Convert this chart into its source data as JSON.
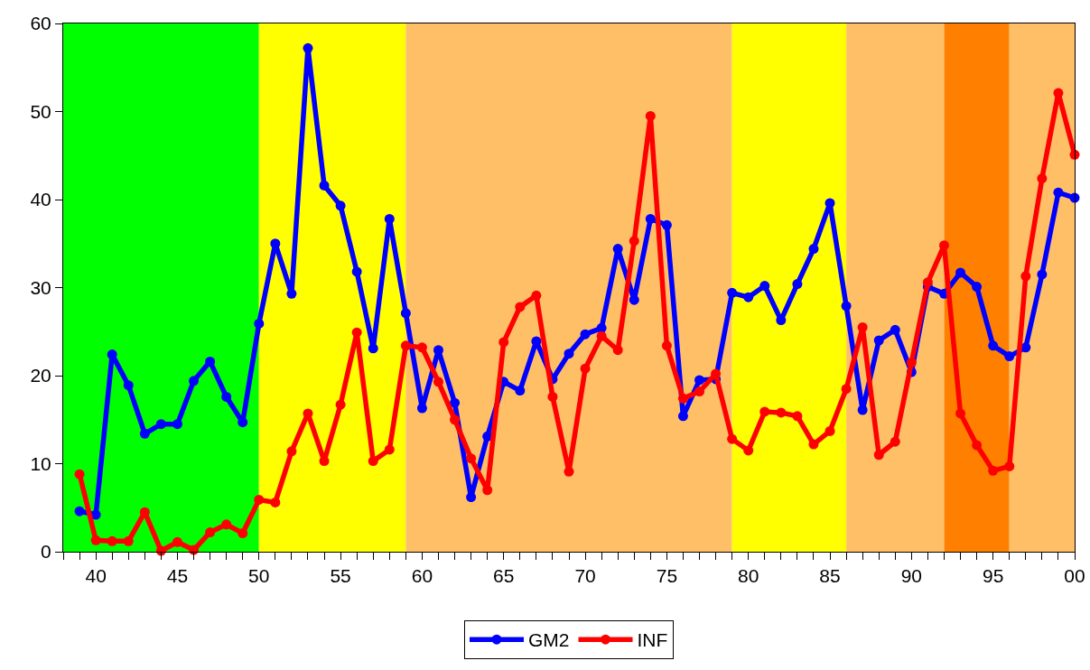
{
  "chart_data": {
    "type": "line",
    "x": [
      1939,
      1940,
      1941,
      1942,
      1943,
      1944,
      1945,
      1946,
      1947,
      1948,
      1949,
      1950,
      1951,
      1952,
      1953,
      1954,
      1955,
      1956,
      1957,
      1958,
      1959,
      1960,
      1961,
      1962,
      1963,
      1964,
      1965,
      1966,
      1967,
      1968,
      1969,
      1970,
      1971,
      1972,
      1973,
      1974,
      1975,
      1976,
      1977,
      1978,
      1979,
      1980,
      1981,
      1982,
      1983,
      1984,
      1985,
      1986,
      1987,
      1988,
      1989,
      1990,
      1991,
      1992,
      1993,
      1994,
      1995,
      1996,
      1997,
      1998,
      1999,
      2000
    ],
    "series": [
      {
        "name": "GM2",
        "color": "#0000ff",
        "values": [
          4.6,
          4.2,
          22.4,
          18.9,
          13.4,
          14.5,
          14.5,
          19.4,
          21.6,
          17.6,
          14.7,
          25.9,
          35.0,
          29.3,
          57.2,
          41.6,
          39.3,
          31.8,
          23.1,
          37.8,
          27.1,
          16.3,
          22.9,
          16.9,
          6.2,
          13.1,
          19.3,
          18.3,
          23.9,
          19.6,
          22.5,
          24.7,
          25.4,
          34.4,
          28.6,
          37.8,
          37.1,
          15.4,
          19.5,
          19.6,
          29.4,
          28.9,
          30.2,
          26.3,
          30.4,
          34.4,
          39.6,
          27.9,
          16.1,
          24.0,
          25.2,
          20.4,
          30.1,
          29.3,
          31.7,
          30.1,
          23.4,
          22.2,
          23.2,
          31.5,
          40.8,
          40.2
        ]
      },
      {
        "name": "INF",
        "color": "#ff0000",
        "values": [
          8.8,
          1.3,
          1.2,
          1.2,
          4.5,
          0.1,
          1.1,
          0.2,
          2.2,
          3.1,
          2.1,
          5.9,
          5.6,
          11.4,
          15.7,
          10.3,
          16.7,
          24.9,
          10.3,
          11.6,
          23.4,
          23.2,
          19.3,
          15.0,
          10.6,
          7.0,
          23.8,
          27.8,
          29.1,
          17.6,
          9.1,
          20.8,
          24.5,
          22.9,
          35.3,
          49.5,
          23.4,
          17.4,
          18.2,
          20.2,
          12.8,
          11.5,
          15.9,
          15.8,
          15.4,
          12.2,
          13.7,
          18.5,
          25.5,
          11.0,
          12.5,
          21.5,
          30.6,
          34.8,
          15.7,
          12.1,
          9.2,
          9.7,
          31.3,
          42.4,
          52.1,
          45.1
        ]
      }
    ],
    "xlim": [
      1938,
      2000
    ],
    "xticks": [
      {
        "value": 1938,
        "label": null
      },
      {
        "value": 1939,
        "label": null
      },
      {
        "value": 1940,
        "label": "40"
      },
      {
        "value": 1941,
        "label": null
      },
      {
        "value": 1942,
        "label": null
      },
      {
        "value": 1943,
        "label": null
      },
      {
        "value": 1944,
        "label": null
      },
      {
        "value": 1945,
        "label": "45"
      },
      {
        "value": 1946,
        "label": null
      },
      {
        "value": 1947,
        "label": null
      },
      {
        "value": 1948,
        "label": null
      },
      {
        "value": 1949,
        "label": null
      },
      {
        "value": 1950,
        "label": "50"
      },
      {
        "value": 1951,
        "label": null
      },
      {
        "value": 1952,
        "label": null
      },
      {
        "value": 1953,
        "label": null
      },
      {
        "value": 1954,
        "label": null
      },
      {
        "value": 1955,
        "label": "55"
      },
      {
        "value": 1956,
        "label": null
      },
      {
        "value": 1957,
        "label": null
      },
      {
        "value": 1958,
        "label": null
      },
      {
        "value": 1959,
        "label": null
      },
      {
        "value": 1960,
        "label": "60"
      },
      {
        "value": 1961,
        "label": null
      },
      {
        "value": 1962,
        "label": null
      },
      {
        "value": 1963,
        "label": null
      },
      {
        "value": 1964,
        "label": null
      },
      {
        "value": 1965,
        "label": "65"
      },
      {
        "value": 1966,
        "label": null
      },
      {
        "value": 1967,
        "label": null
      },
      {
        "value": 1968,
        "label": null
      },
      {
        "value": 1969,
        "label": null
      },
      {
        "value": 1970,
        "label": "70"
      },
      {
        "value": 1971,
        "label": null
      },
      {
        "value": 1972,
        "label": null
      },
      {
        "value": 1973,
        "label": null
      },
      {
        "value": 1974,
        "label": null
      },
      {
        "value": 1975,
        "label": "75"
      },
      {
        "value": 1976,
        "label": null
      },
      {
        "value": 1977,
        "label": null
      },
      {
        "value": 1978,
        "label": null
      },
      {
        "value": 1979,
        "label": null
      },
      {
        "value": 1980,
        "label": "80"
      },
      {
        "value": 1981,
        "label": null
      },
      {
        "value": 1982,
        "label": null
      },
      {
        "value": 1983,
        "label": null
      },
      {
        "value": 1984,
        "label": null
      },
      {
        "value": 1985,
        "label": "85"
      },
      {
        "value": 1986,
        "label": null
      },
      {
        "value": 1987,
        "label": null
      },
      {
        "value": 1988,
        "label": null
      },
      {
        "value": 1989,
        "label": null
      },
      {
        "value": 1990,
        "label": "90"
      },
      {
        "value": 1991,
        "label": null
      },
      {
        "value": 1992,
        "label": null
      },
      {
        "value": 1993,
        "label": null
      },
      {
        "value": 1994,
        "label": null
      },
      {
        "value": 1995,
        "label": "95"
      },
      {
        "value": 1996,
        "label": null
      },
      {
        "value": 1997,
        "label": null
      },
      {
        "value": 1998,
        "label": null
      },
      {
        "value": 1999,
        "label": null
      },
      {
        "value": 2000,
        "label": "00"
      }
    ],
    "ylim": [
      0,
      60
    ],
    "yticks": [
      0,
      10,
      20,
      30,
      40,
      50,
      60
    ],
    "bands": [
      {
        "axis": "x",
        "from": 1938,
        "to": 1950,
        "color": "#00ff00"
      },
      {
        "axis": "x",
        "from": 1950,
        "to": 1959,
        "color": "#ffff00"
      },
      {
        "axis": "x",
        "from": 1959,
        "to": 1979,
        "color": "#ffbf66"
      },
      {
        "axis": "x",
        "from": 1979,
        "to": 1986,
        "color": "#ffff00"
      },
      {
        "axis": "x",
        "from": 1986,
        "to": 1992,
        "color": "#ffbf66"
      },
      {
        "axis": "x",
        "from": 1992,
        "to": 1996,
        "color": "#ff8000"
      },
      {
        "axis": "x",
        "from": 1996,
        "to": 2000,
        "color": "#ffbf66"
      }
    ],
    "grid": false,
    "legend": "bottom",
    "marker": "circle",
    "line_style": "solid"
  }
}
